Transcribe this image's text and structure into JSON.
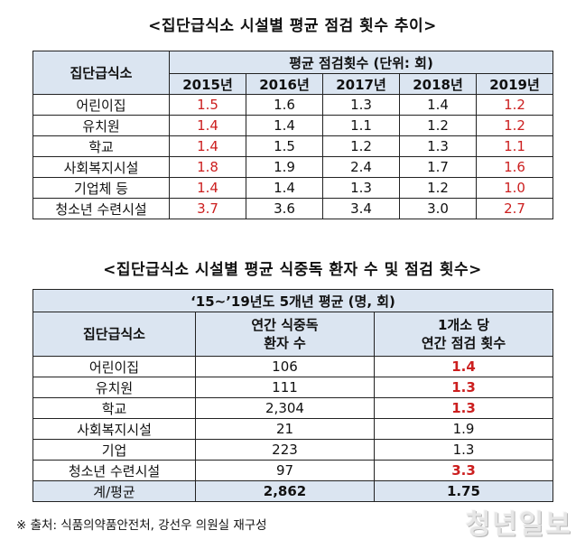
{
  "table1": {
    "title": "<집단급식소 시설별 평균 점검 횟수 추이>",
    "corner_header": "집단급식소",
    "group_header": "평균 점검횟수 (단위: 회)",
    "years": [
      "2015년",
      "2016년",
      "2017년",
      "2018년",
      "2019년"
    ],
    "rows": [
      {
        "name": "어린이집",
        "values": [
          "1.5",
          "1.6",
          "1.3",
          "1.4",
          "1.2"
        ]
      },
      {
        "name": "유치원",
        "values": [
          "1.4",
          "1.4",
          "1.1",
          "1.2",
          "1.2"
        ]
      },
      {
        "name": "학교",
        "values": [
          "1.4",
          "1.5",
          "1.2",
          "1.3",
          "1.1"
        ]
      },
      {
        "name": "사회복지시설",
        "values": [
          "1.8",
          "1.9",
          "2.4",
          "1.7",
          "1.6"
        ]
      },
      {
        "name": "기업체 등",
        "values": [
          "1.4",
          "1.4",
          "1.3",
          "1.2",
          "1.0"
        ]
      },
      {
        "name": "청소년 수련시설",
        "values": [
          "3.7",
          "3.6",
          "3.4",
          "3.0",
          "2.7"
        ]
      }
    ]
  },
  "table2": {
    "title": "<집단급식소 시설별 평균 식중독 환자 수 및 점검 횟수>",
    "period_header": "‘15~’19년도 5개년 평균 (명, 회)",
    "corner_header": "집단급식소",
    "col1_header_line1": "연간 식중독",
    "col1_header_line2": "환자 수",
    "col2_header_line1": "1개소 당",
    "col2_header_line2": "연간 점검 횟수",
    "rows": [
      {
        "name": "어린이집",
        "patients": "106",
        "inspections": "1.4"
      },
      {
        "name": "유치원",
        "patients": "111",
        "inspections": "1.3"
      },
      {
        "name": "학교",
        "patients": "2,304",
        "inspections": "1.3"
      },
      {
        "name": "사회복지시설",
        "patients": "21",
        "inspections": "1.9"
      },
      {
        "name": "기업",
        "patients": "223",
        "inspections": "1.3"
      },
      {
        "name": "청소년 수련시설",
        "patients": "97",
        "inspections": "3.3"
      }
    ],
    "total": {
      "name": "계/평균",
      "patients": "2,862",
      "inspections": "1.75"
    }
  },
  "source_note": "※ 출처: 식품의약품안전처, 강선우 의원실 재구성",
  "watermark": "청년일보",
  "colors": {
    "header_bg": "#dbe5f1",
    "highlight_red": "#cc1f1f"
  }
}
